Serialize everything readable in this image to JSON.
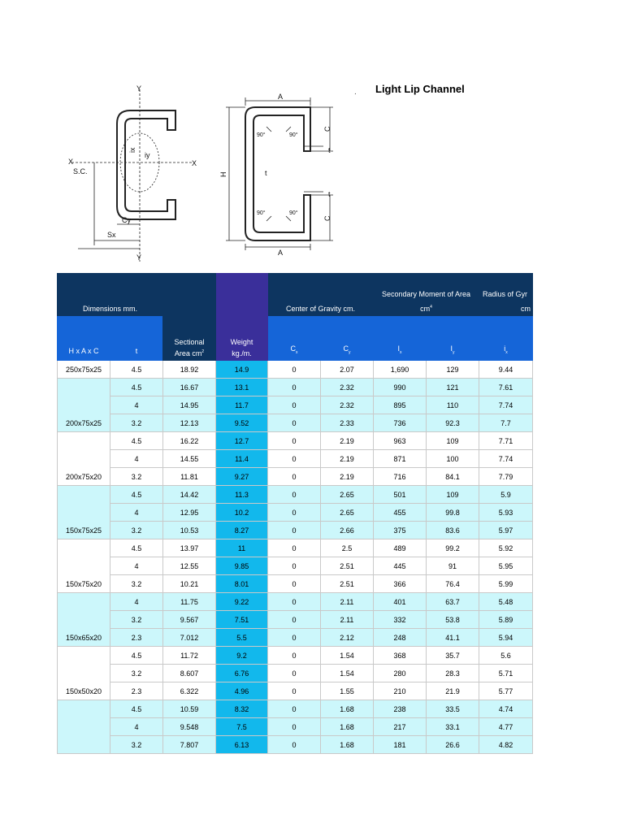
{
  "title": "Light Lip Channel",
  "header": {
    "dimensions": "Dimensions mm.",
    "sectional_1": "Sectional",
    "sectional_2": "Area cm",
    "sectional_sup": "2",
    "weight_1": "Weight",
    "weight_2": "kg./m.",
    "cog": "Center of Gravity cm.",
    "smoa_1": "Secondary Moment of Area",
    "smoa_2": "cm",
    "smoa_sup": "4",
    "rog_1": "Radius of Gyr",
    "rog_2": "cm",
    "hxaxc": "H x A x C",
    "t": "t",
    "cx": "C",
    "cx_sub": "x",
    "cy": "C",
    "cy_sub": "y",
    "ix": "I",
    "ix_sub": "x",
    "iy": "I",
    "iy_sub": "y",
    "rx": "i",
    "rx_sub": "x"
  },
  "diagram_labels": {
    "left": {
      "y_top": "Y",
      "y_bottom": "Y",
      "x_left": "X",
      "x_right": "X",
      "sc": "S.C.",
      "ix": "ix",
      "iy": "iy",
      "cy": "Cy",
      "sx": "Sx"
    },
    "right": {
      "a_top": "A",
      "a_bottom": "A",
      "h": "H",
      "c_top": "C",
      "c_bottom": "C",
      "t1": "t",
      "t2": "t",
      "t3": "t",
      "ang1": "90°",
      "ang2": "90°",
      "ang3": "90°",
      "ang4": "90°"
    }
  },
  "groups": [
    {
      "dim": "250x75x25",
      "rows": [
        {
          "t": "4.5",
          "area": "18.92",
          "weight": "14.9",
          "cx": "0",
          "cy": "2.07",
          "ix": "1,690",
          "iy": "129",
          "rx": "9.44"
        }
      ]
    },
    {
      "dim": "200x75x25",
      "rows": [
        {
          "t": "4.5",
          "area": "16.67",
          "weight": "13.1",
          "cx": "0",
          "cy": "2.32",
          "ix": "990",
          "iy": "121",
          "rx": "7.61"
        },
        {
          "t": "4",
          "area": "14.95",
          "weight": "11.7",
          "cx": "0",
          "cy": "2.32",
          "ix": "895",
          "iy": "110",
          "rx": "7.74"
        },
        {
          "t": "3.2",
          "area": "12.13",
          "weight": "9.52",
          "cx": "0",
          "cy": "2.33",
          "ix": "736",
          "iy": "92.3",
          "rx": "7.7"
        }
      ]
    },
    {
      "dim": "200x75x20",
      "rows": [
        {
          "t": "4.5",
          "area": "16.22",
          "weight": "12.7",
          "cx": "0",
          "cy": "2.19",
          "ix": "963",
          "iy": "109",
          "rx": "7.71"
        },
        {
          "t": "4",
          "area": "14.55",
          "weight": "11.4",
          "cx": "0",
          "cy": "2.19",
          "ix": "871",
          "iy": "100",
          "rx": "7.74"
        },
        {
          "t": "3.2",
          "area": "11.81",
          "weight": "9.27",
          "cx": "0",
          "cy": "2.19",
          "ix": "716",
          "iy": "84.1",
          "rx": "7.79"
        }
      ]
    },
    {
      "dim": "150x75x25",
      "rows": [
        {
          "t": "4.5",
          "area": "14.42",
          "weight": "11.3",
          "cx": "0",
          "cy": "2.65",
          "ix": "501",
          "iy": "109",
          "rx": "5.9"
        },
        {
          "t": "4",
          "area": "12.95",
          "weight": "10.2",
          "cx": "0",
          "cy": "2.65",
          "ix": "455",
          "iy": "99.8",
          "rx": "5.93"
        },
        {
          "t": "3.2",
          "area": "10.53",
          "weight": "8.27",
          "cx": "0",
          "cy": "2.66",
          "ix": "375",
          "iy": "83.6",
          "rx": "5.97"
        }
      ]
    },
    {
      "dim": "150x75x20",
      "rows": [
        {
          "t": "4.5",
          "area": "13.97",
          "weight": "11",
          "cx": "0",
          "cy": "2.5",
          "ix": "489",
          "iy": "99.2",
          "rx": "5.92"
        },
        {
          "t": "4",
          "area": "12.55",
          "weight": "9.85",
          "cx": "0",
          "cy": "2.51",
          "ix": "445",
          "iy": "91",
          "rx": "5.95"
        },
        {
          "t": "3.2",
          "area": "10.21",
          "weight": "8.01",
          "cx": "0",
          "cy": "2.51",
          "ix": "366",
          "iy": "76.4",
          "rx": "5.99"
        }
      ]
    },
    {
      "dim": "150x65x20",
      "rows": [
        {
          "t": "4",
          "area": "11.75",
          "weight": "9.22",
          "cx": "0",
          "cy": "2.11",
          "ix": "401",
          "iy": "63.7",
          "rx": "5.48"
        },
        {
          "t": "3.2",
          "area": "9.567",
          "weight": "7.51",
          "cx": "0",
          "cy": "2.11",
          "ix": "332",
          "iy": "53.8",
          "rx": "5.89"
        },
        {
          "t": "2.3",
          "area": "7.012",
          "weight": "5.5",
          "cx": "0",
          "cy": "2.12",
          "ix": "248",
          "iy": "41.1",
          "rx": "5.94"
        }
      ]
    },
    {
      "dim": "150x50x20",
      "rows": [
        {
          "t": "4.5",
          "area": "11.72",
          "weight": "9.2",
          "cx": "0",
          "cy": "1.54",
          "ix": "368",
          "iy": "35.7",
          "rx": "5.6"
        },
        {
          "t": "3.2",
          "area": "8.607",
          "weight": "6.76",
          "cx": "0",
          "cy": "1.54",
          "ix": "280",
          "iy": "28.3",
          "rx": "5.71"
        },
        {
          "t": "2.3",
          "area": "6.322",
          "weight": "4.96",
          "cx": "0",
          "cy": "1.55",
          "ix": "210",
          "iy": "21.9",
          "rx": "5.77"
        }
      ]
    },
    {
      "dim": "",
      "rows": [
        {
          "t": "4.5",
          "area": "10.59",
          "weight": "8.32",
          "cx": "0",
          "cy": "1.68",
          "ix": "238",
          "iy": "33.5",
          "rx": "4.74"
        },
        {
          "t": "4",
          "area": "9.548",
          "weight": "7.5",
          "cx": "0",
          "cy": "1.68",
          "ix": "217",
          "iy": "33.1",
          "rx": "4.77"
        },
        {
          "t": "3.2",
          "area": "7.807",
          "weight": "6.13",
          "cx": "0",
          "cy": "1.68",
          "ix": "181",
          "iy": "26.6",
          "rx": "4.82"
        }
      ]
    }
  ]
}
